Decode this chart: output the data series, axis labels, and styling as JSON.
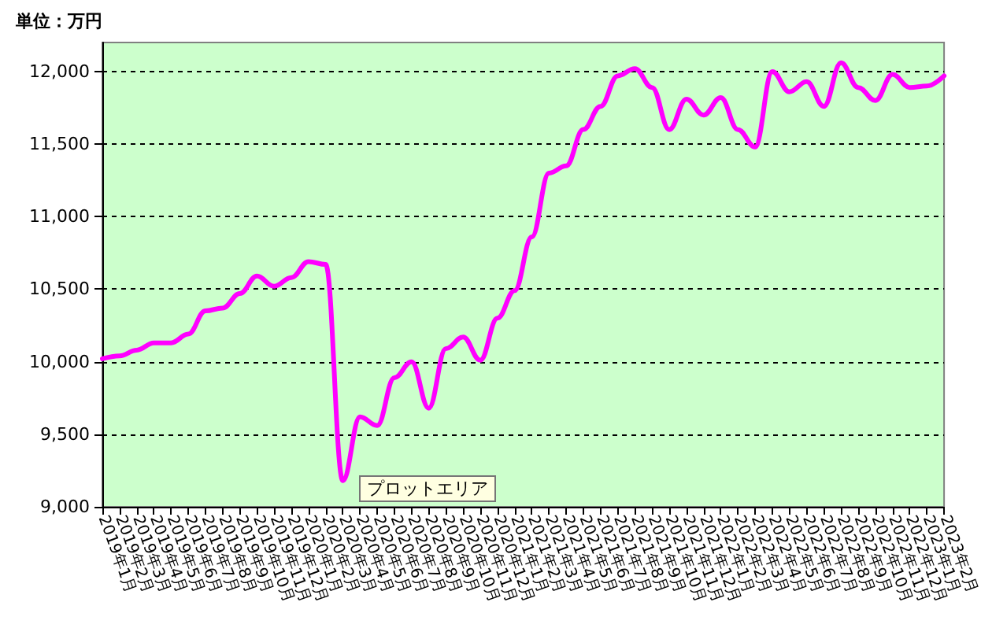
{
  "chart_data": {
    "type": "line",
    "ylabel": "単位：万円",
    "categories": [
      "2019年1月",
      "2019年2月",
      "2019年3月",
      "2019年4月",
      "2019年5月",
      "2019年6月",
      "2019年7月",
      "2019年8月",
      "2019年9月",
      "2019年10月",
      "2019年11月",
      "2019年12月",
      "2020年1月",
      "2020年2月",
      "2020年3月",
      "2020年4月",
      "2020年5月",
      "2020年6月",
      "2020年7月",
      "2020年8月",
      "2020年9月",
      "2020年10月",
      "2020年11月",
      "2020年12月",
      "2021年1月",
      "2021年2月",
      "2021年3月",
      "2021年4月",
      "2021年5月",
      "2021年6月",
      "2021年7月",
      "2021年8月",
      "2021年9月",
      "2021年10月",
      "2021年11月",
      "2021年12月",
      "2022年1月",
      "2022年2月",
      "2022年3月",
      "2022年4月",
      "2022年5月",
      "2022年6月",
      "2022年7月",
      "2022年8月",
      "2022年9月",
      "2022年10月",
      "2022年11月",
      "2022年12月",
      "2023年1月",
      "2023年2月"
    ],
    "series": [
      {
        "color": "#ff00ff",
        "values": [
          10020,
          10040,
          10080,
          10130,
          10130,
          10190,
          10350,
          10370,
          10470,
          10590,
          10520,
          10580,
          10690,
          10670,
          9180,
          9620,
          9560,
          9890,
          10000,
          9680,
          10090,
          10170,
          10010,
          10300,
          10490,
          10860,
          11300,
          11350,
          11600,
          11760,
          11970,
          12020,
          11890,
          11600,
          11810,
          11700,
          11820,
          11600,
          11480,
          12000,
          11860,
          11930,
          11760,
          12060,
          11890,
          11800,
          11980,
          11890,
          11900,
          11970
        ]
      }
    ],
    "ylim": [
      9000,
      12200
    ],
    "yticks": [
      {
        "value": 9000,
        "label": "9,000"
      },
      {
        "value": 9500,
        "label": "9,500"
      },
      {
        "value": 10000,
        "label": "10,000"
      },
      {
        "value": 10500,
        "label": "10,500"
      },
      {
        "value": 11000,
        "label": "11,000"
      },
      {
        "value": 11500,
        "label": "11,500"
      },
      {
        "value": 12000,
        "label": "12,000"
      }
    ],
    "grid": "y",
    "marker": "none",
    "line_style": "solid",
    "annotations": [
      "プロットエリア"
    ]
  }
}
